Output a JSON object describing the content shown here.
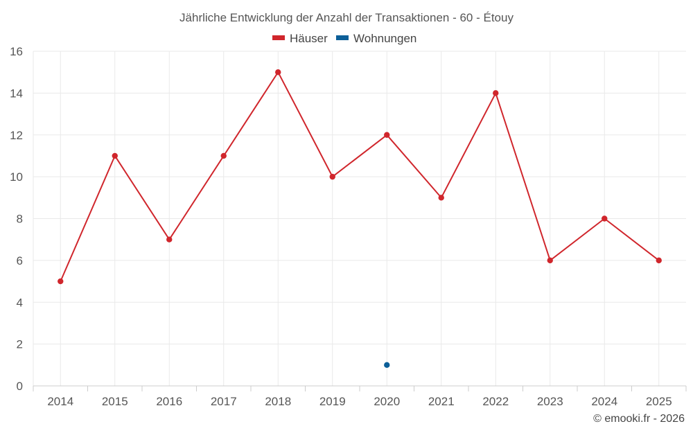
{
  "chart_data": {
    "type": "line",
    "title": "Jährliche Entwicklung der Anzahl der Transaktionen - 60 - Étouy",
    "categories": [
      "2014",
      "2015",
      "2016",
      "2017",
      "2018",
      "2019",
      "2020",
      "2021",
      "2022",
      "2023",
      "2024",
      "2025"
    ],
    "series": [
      {
        "name": "Häuser",
        "color": "#d0262c",
        "values": [
          5,
          11,
          7,
          11,
          15,
          10,
          12,
          9,
          14,
          6,
          8,
          6
        ]
      },
      {
        "name": "Wohnungen",
        "color": "#0c5f98",
        "values": [
          null,
          null,
          null,
          null,
          null,
          null,
          1,
          null,
          null,
          null,
          null,
          null
        ]
      }
    ],
    "ylim": [
      0,
      16
    ],
    "yticks": [
      0,
      2,
      4,
      6,
      8,
      10,
      12,
      14,
      16
    ],
    "grid": true,
    "legend": "top-center",
    "xlabel": "",
    "ylabel": ""
  },
  "credit": "© emooki.fr - 2026"
}
